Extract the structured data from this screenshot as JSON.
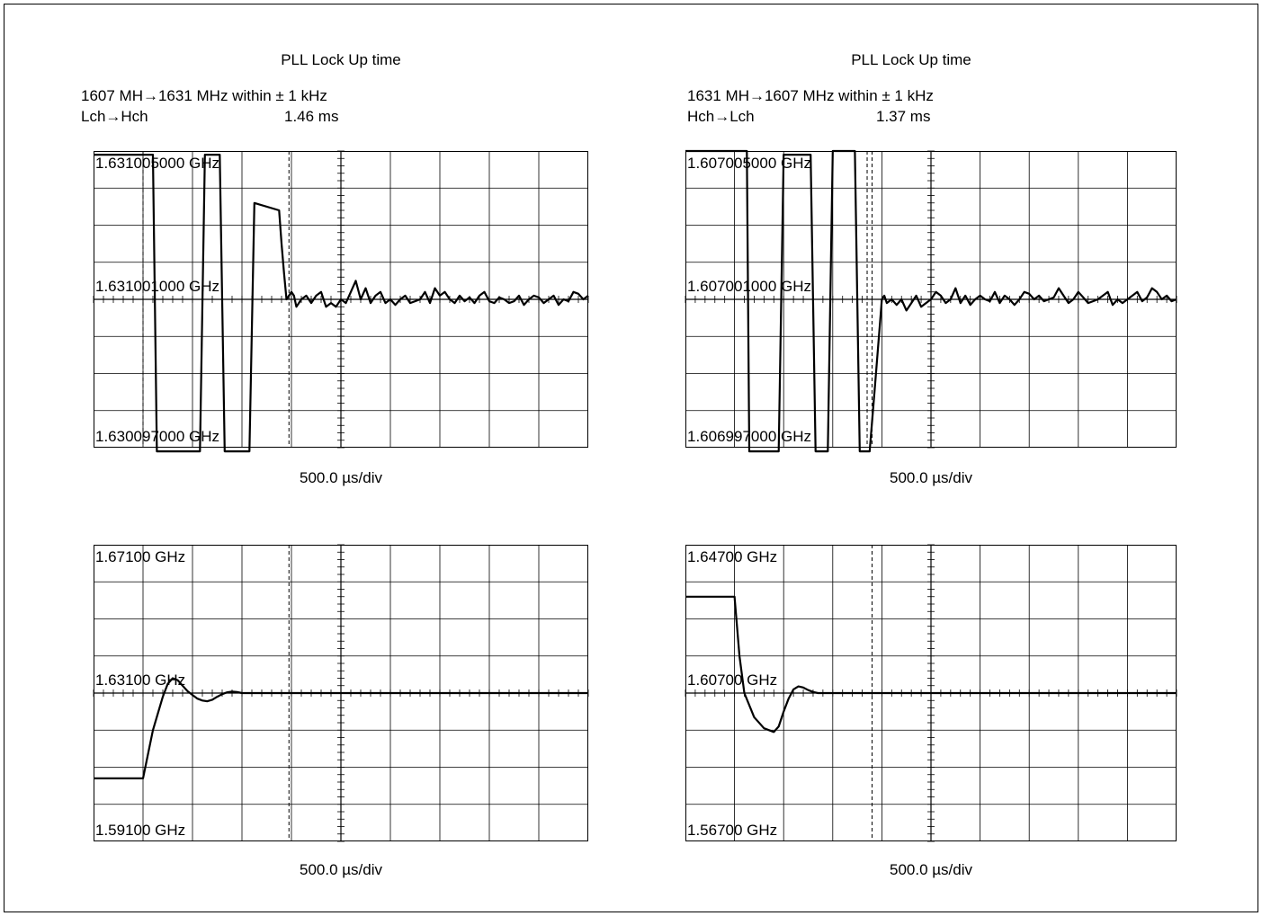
{
  "panels": [
    {
      "title": "PLL Lock Up time",
      "line1": "1607 MH→1631 MHz within ± 1 kHz",
      "line2_label": "Lch→Hch",
      "line2_value": "1.46 ms"
    },
    {
      "title": "PLL Lock Up time",
      "line1": "1631 MH→1607 MHz within ± 1 kHz",
      "line2_label": "Hch→Lch",
      "line2_value": "1.37 ms"
    }
  ],
  "chart_data": [
    {
      "type": "line",
      "ytick_labels": [
        "1.631005000 GHz",
        "1.631001000 GHz",
        "1.630097000 GHz"
      ],
      "xlabel": "500.0 µs/div",
      "divisions": {
        "x": 10,
        "y": 8
      },
      "x": [
        0,
        1.2,
        1.28,
        2.15,
        2.25,
        2.55,
        2.65,
        3.15,
        3.25,
        3.75,
        3.8,
        3.85,
        3.9,
        4.0,
        4.05,
        4.1,
        4.2,
        4.3,
        4.4,
        4.5,
        4.6,
        4.7,
        4.8,
        4.9,
        5.0,
        5.1,
        5.2,
        5.3,
        5.4,
        5.5,
        5.6,
        5.7,
        5.8,
        5.9,
        6.0,
        6.1,
        6.2,
        6.3,
        6.4,
        6.5,
        6.6,
        6.7,
        6.8,
        6.9,
        7.0,
        7.1,
        7.2,
        7.3,
        7.4,
        7.5,
        7.6,
        7.7,
        7.8,
        7.9,
        8.0,
        8.1,
        8.2,
        8.3,
        8.4,
        8.5,
        8.6,
        8.7,
        8.8,
        8.9,
        9.0,
        9.1,
        9.2,
        9.3,
        9.4,
        9.5,
        9.6,
        9.7,
        9.8,
        9.9,
        10.0
      ],
      "y": [
        7.9,
        7.9,
        -0.1,
        -0.1,
        7.9,
        7.9,
        -0.1,
        -0.1,
        6.6,
        6.4,
        5.5,
        4.7,
        4.0,
        4.2,
        4.1,
        3.8,
        4.0,
        4.1,
        3.9,
        4.1,
        4.2,
        3.8,
        3.9,
        3.8,
        4.0,
        3.9,
        4.2,
        4.5,
        4.0,
        4.3,
        3.9,
        4.1,
        4.2,
        3.9,
        4.0,
        3.85,
        4.0,
        4.1,
        3.9,
        3.95,
        4.0,
        4.2,
        3.9,
        4.3,
        4.1,
        4.2,
        4.0,
        3.9,
        4.1,
        3.95,
        4.05,
        3.9,
        4.1,
        4.2,
        3.95,
        3.9,
        4.05,
        4.0,
        3.9,
        3.95,
        4.1,
        3.85,
        4.0,
        4.1,
        4.05,
        3.9,
        4.0,
        4.1,
        3.85,
        4.0,
        3.95,
        4.2,
        4.15,
        4.0,
        4.1
      ]
    },
    {
      "type": "line",
      "ytick_labels": [
        "1.607005000 GHz",
        "1.607001000 GHz",
        "1.606997000 GHz"
      ],
      "xlabel": "500.0 µs/div",
      "divisions": {
        "x": 10,
        "y": 8
      },
      "x": [
        0,
        1.25,
        1.3,
        1.9,
        2.0,
        2.55,
        2.65,
        2.9,
        3.0,
        3.45,
        3.55,
        3.75,
        3.85,
        4.0,
        4.05,
        4.1,
        4.2,
        4.3,
        4.4,
        4.5,
        4.6,
        4.7,
        4.8,
        4.9,
        5.0,
        5.1,
        5.2,
        5.3,
        5.4,
        5.5,
        5.6,
        5.7,
        5.8,
        5.9,
        6.0,
        6.1,
        6.2,
        6.3,
        6.4,
        6.5,
        6.6,
        6.7,
        6.8,
        6.9,
        7.0,
        7.1,
        7.2,
        7.3,
        7.4,
        7.5,
        7.6,
        7.7,
        7.8,
        7.9,
        8.0,
        8.1,
        8.2,
        8.3,
        8.4,
        8.5,
        8.6,
        8.7,
        8.8,
        8.9,
        9.0,
        9.1,
        9.2,
        9.3,
        9.4,
        9.5,
        9.6,
        9.7,
        9.8,
        9.9,
        10.0
      ],
      "y": [
        8.0,
        8.0,
        -0.1,
        -0.1,
        7.9,
        7.9,
        -0.1,
        -0.1,
        8.0,
        8.0,
        -0.1,
        -0.1,
        1.5,
        4.0,
        4.1,
        3.9,
        4.0,
        3.85,
        4.0,
        3.7,
        3.9,
        4.1,
        3.8,
        3.9,
        4.0,
        4.2,
        4.1,
        3.9,
        4.0,
        4.3,
        3.9,
        4.1,
        3.85,
        4.0,
        4.1,
        4.0,
        3.95,
        4.2,
        3.9,
        4.1,
        4.0,
        3.85,
        4.0,
        4.2,
        4.15,
        4.0,
        4.1,
        3.95,
        4.0,
        4.05,
        4.3,
        4.1,
        3.9,
        4.0,
        4.2,
        4.05,
        3.9,
        3.95,
        4.0,
        4.1,
        4.2,
        3.85,
        4.0,
        3.9,
        4.0,
        4.1,
        4.2,
        3.95,
        4.05,
        4.3,
        4.2,
        4.0,
        4.1,
        3.95,
        4.0
      ]
    },
    {
      "type": "line",
      "ytick_labels": [
        "1.67100 GHz",
        "1.63100 GHz",
        "1.59100 GHz"
      ],
      "xlabel": "500.0 µs/div",
      "divisions": {
        "x": 10,
        "y": 8
      },
      "x": [
        0,
        1.0,
        1.2,
        1.4,
        1.5,
        1.6,
        1.7,
        1.8,
        1.9,
        2.0,
        2.1,
        2.2,
        2.3,
        2.4,
        2.5,
        2.6,
        2.7,
        2.8,
        2.9,
        3.0,
        3.5,
        4.0,
        10.0
      ],
      "y": [
        1.7,
        1.7,
        3.0,
        3.9,
        4.25,
        4.4,
        4.35,
        4.2,
        4.05,
        3.95,
        3.85,
        3.8,
        3.78,
        3.82,
        3.9,
        3.97,
        4.02,
        4.04,
        4.03,
        4.0,
        4.0,
        4.0,
        4.0
      ]
    },
    {
      "type": "line",
      "ytick_labels": [
        "1.64700 GHz",
        "1.60700 GHz",
        "1.56700 GHz"
      ],
      "xlabel": "500.0 µs/div",
      "divisions": {
        "x": 10,
        "y": 8
      },
      "x": [
        0,
        1.0,
        1.1,
        1.2,
        1.4,
        1.6,
        1.8,
        1.9,
        2.0,
        2.1,
        2.2,
        2.3,
        2.4,
        2.5,
        2.6,
        2.7,
        2.8,
        3.0,
        10.0
      ],
      "y": [
        6.6,
        6.6,
        5.0,
        4.0,
        3.35,
        3.05,
        2.95,
        3.1,
        3.5,
        3.85,
        4.1,
        4.18,
        4.15,
        4.08,
        4.03,
        4.0,
        4.0,
        4.0,
        4.0
      ]
    }
  ]
}
